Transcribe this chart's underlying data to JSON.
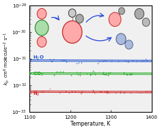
{
  "xlabel": "Temperature, K",
  "ylabel": "$k_0$, cm$^6$ molecule$^{-2}$ s$^{-1}$",
  "xlim": [
    1100,
    1400
  ],
  "x_ticks": [
    1100,
    1200,
    1300,
    1400
  ],
  "h2o_color": "#2255cc",
  "co2_color": "#22aa22",
  "n2_color": "#cc2222",
  "h2o_label": "H$_2$O",
  "co2_label": "CO$_2$",
  "n2_label": "N$_2$",
  "h2o_val": 8.5e-32,
  "co2_val": 2.8e-32,
  "n2_val": 5.8e-33,
  "bg_color": "#f0f0f0",
  "panel_bg": "#ffffff",
  "arrow_color": "#2244dd",
  "mol_red_face": "#ffaaaa",
  "mol_red_edge": "#cc2222",
  "mol_green_face": "#aaddaa",
  "mol_green_edge": "#228822",
  "mol_gray_face": "#aaaaaa",
  "mol_gray_edge": "#444444",
  "mol_blue_face": "#aabbdd",
  "mol_blue_edge": "#445588"
}
